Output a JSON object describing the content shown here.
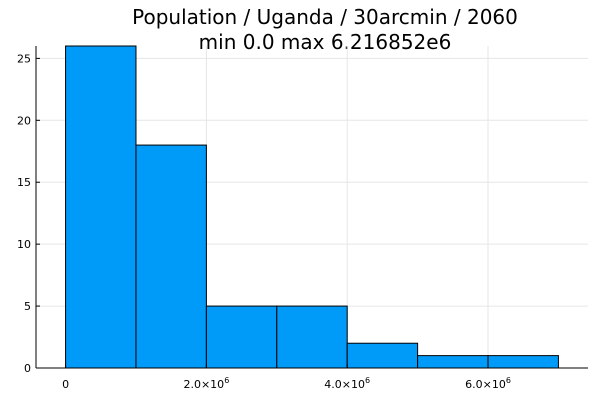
{
  "chart_data": {
    "type": "bar",
    "title_line1": "Population / Uganda / 30arcmin / 2060",
    "title_line2": "min 0.0  max 6.216852e6",
    "bins": [
      {
        "x0": 0,
        "x1": 1000000,
        "count": 26
      },
      {
        "x0": 1000000,
        "x1": 2000000,
        "count": 18
      },
      {
        "x0": 2000000,
        "x1": 3000000,
        "count": 5
      },
      {
        "x0": 3000000,
        "x1": 4000000,
        "count": 5
      },
      {
        "x0": 4000000,
        "x1": 5000000,
        "count": 2
      },
      {
        "x0": 5000000,
        "x1": 6000000,
        "count": 1
      },
      {
        "x0": 6000000,
        "x1": 7000000,
        "count": 1
      }
    ],
    "xlim": [
      -420000,
      7420000
    ],
    "ylim": [
      0,
      26
    ],
    "x_ticks": [
      {
        "value": 0,
        "mantissa": "0",
        "exponent": ""
      },
      {
        "value": 2000000,
        "mantissa": "2.0×10",
        "exponent": "6"
      },
      {
        "value": 4000000,
        "mantissa": "4.0×10",
        "exponent": "6"
      },
      {
        "value": 6000000,
        "mantissa": "6.0×10",
        "exponent": "6"
      }
    ],
    "y_ticks": [
      0,
      5,
      10,
      15,
      20,
      25
    ],
    "grid": true,
    "legend": "none",
    "colors": {
      "bar": "#009af9",
      "edge": "#000000",
      "grid": "#e6e6e6"
    }
  }
}
